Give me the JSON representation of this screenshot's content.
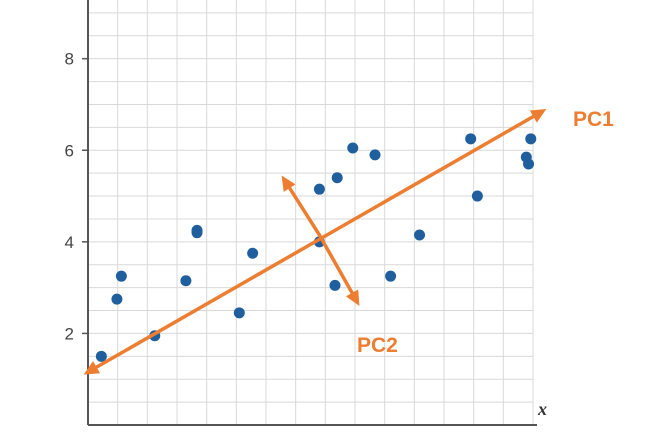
{
  "chart_data": {
    "type": "scatter",
    "title": "",
    "xlabel": "x",
    "ylabel": "",
    "xlim": [
      0,
      10
    ],
    "ylim": [
      0,
      9.5
    ],
    "grid": true,
    "x_ticks": [],
    "y_ticks": [
      {
        "value": 2,
        "label": "2"
      },
      {
        "value": 4,
        "label": "4"
      },
      {
        "value": 6,
        "label": "6"
      },
      {
        "value": 8,
        "label": "8"
      }
    ],
    "points": [
      {
        "x": 0.3,
        "y": 1.5
      },
      {
        "x": 0.65,
        "y": 2.75
      },
      {
        "x": 0.75,
        "y": 3.25
      },
      {
        "x": 1.5,
        "y": 1.95
      },
      {
        "x": 2.2,
        "y": 3.15
      },
      {
        "x": 2.45,
        "y": 4.2
      },
      {
        "x": 2.45,
        "y": 4.25
      },
      {
        "x": 3.4,
        "y": 2.45
      },
      {
        "x": 3.7,
        "y": 3.75
      },
      {
        "x": 5.2,
        "y": 4.0
      },
      {
        "x": 5.2,
        "y": 5.15
      },
      {
        "x": 5.55,
        "y": 3.05
      },
      {
        "x": 5.6,
        "y": 5.4
      },
      {
        "x": 5.95,
        "y": 6.05
      },
      {
        "x": 6.45,
        "y": 5.9
      },
      {
        "x": 6.8,
        "y": 3.25
      },
      {
        "x": 7.45,
        "y": 4.15
      },
      {
        "x": 8.6,
        "y": 6.25
      },
      {
        "x": 8.75,
        "y": 5.0
      },
      {
        "x": 9.85,
        "y": 5.85
      },
      {
        "x": 9.9,
        "y": 5.7
      },
      {
        "x": 9.95,
        "y": 6.25
      }
    ],
    "vectors": [
      {
        "name": "PC1",
        "from": [
          -0.1,
          1.1
        ],
        "to": [
          10.3,
          6.9
        ]
      },
      {
        "name": "PC2",
        "from": [
          5.2,
          4.15
        ],
        "to": [
          4.35,
          5.45
        ]
      },
      {
        "name": "",
        "from": [
          5.2,
          4.15
        ],
        "to": [
          6.1,
          2.6
        ]
      }
    ],
    "colors": {
      "point": "#1f5f9e",
      "vector": "#ed7d31",
      "grid": "#d9d9d9",
      "axis": "#555555"
    }
  }
}
